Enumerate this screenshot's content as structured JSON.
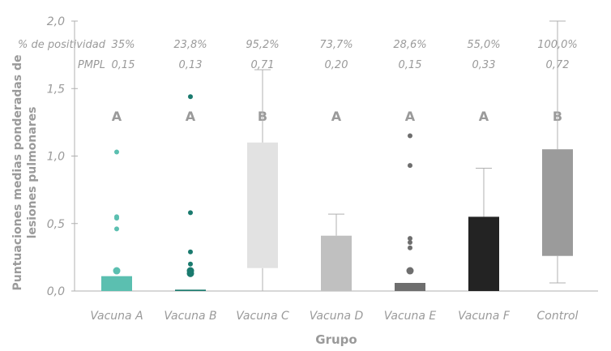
{
  "chart_data": {
    "type": "box",
    "xlabel": "Grupo",
    "ylabel_lines": [
      "Puntuaciones medias ponderadas de",
      "lesiones pulmonares"
    ],
    "ylim": [
      0,
      2.0
    ],
    "yticks": [
      "0,0",
      "0,5",
      "1,0",
      "1,5",
      "2,0"
    ],
    "yticks_values": [
      0,
      0.5,
      1.0,
      1.5,
      2.0
    ],
    "row_labels": {
      "positivity": "% de positividad",
      "pmpl": "PMPL"
    },
    "groups": [
      {
        "name": "Vacuna A",
        "positivity": "35%",
        "pmpl": "0,15",
        "letter": "A",
        "color": "#5bbfb0",
        "q1": 0.0,
        "q3": 0.11,
        "whisker_low": null,
        "whisker_high": null,
        "outliers": [
          1.03,
          0.55,
          0.54,
          0.46,
          0.15
        ]
      },
      {
        "name": "Vacuna B",
        "positivity": "23,8%",
        "pmpl": "0,13",
        "letter": "A",
        "color": "#1a7a6e",
        "q1": 0.0,
        "q3": 0.01,
        "whisker_low": null,
        "whisker_high": null,
        "outliers": [
          1.44,
          0.58,
          0.29,
          0.2,
          0.15,
          0.13
        ]
      },
      {
        "name": "Vacuna C",
        "positivity": "95,2%",
        "pmpl": "0,71",
        "letter": "B",
        "color": "#e2e2e2",
        "q1": 0.17,
        "q3": 1.1,
        "whisker_low": 0.0,
        "whisker_high": 1.64,
        "outliers": []
      },
      {
        "name": "Vacuna D",
        "positivity": "73,7%",
        "pmpl": "0,20",
        "letter": "A",
        "color": "#c0c0c0",
        "q1": 0.0,
        "q3": 0.41,
        "whisker_low": null,
        "whisker_high": 0.57,
        "outliers": []
      },
      {
        "name": "Vacuna E",
        "positivity": "28,6%",
        "pmpl": "0,15",
        "letter": "A",
        "color": "#6e6e6e",
        "q1": 0.0,
        "q3": 0.06,
        "whisker_low": null,
        "whisker_high": null,
        "outliers": [
          1.15,
          0.93,
          0.39,
          0.36,
          0.32,
          0.15
        ]
      },
      {
        "name": "Vacuna F",
        "positivity": "55,0%",
        "pmpl": "0,33",
        "letter": "A",
        "color": "#232323",
        "q1": 0.0,
        "q3": 0.55,
        "whisker_low": null,
        "whisker_high": 0.91,
        "outliers": []
      },
      {
        "name": "Control",
        "positivity": "100,0%",
        "pmpl": "0,72",
        "letter": "B",
        "color": "#9b9b9b",
        "q1": 0.26,
        "q3": 1.05,
        "whisker_low": 0.06,
        "whisker_high": 2.0,
        "outliers": []
      }
    ]
  }
}
